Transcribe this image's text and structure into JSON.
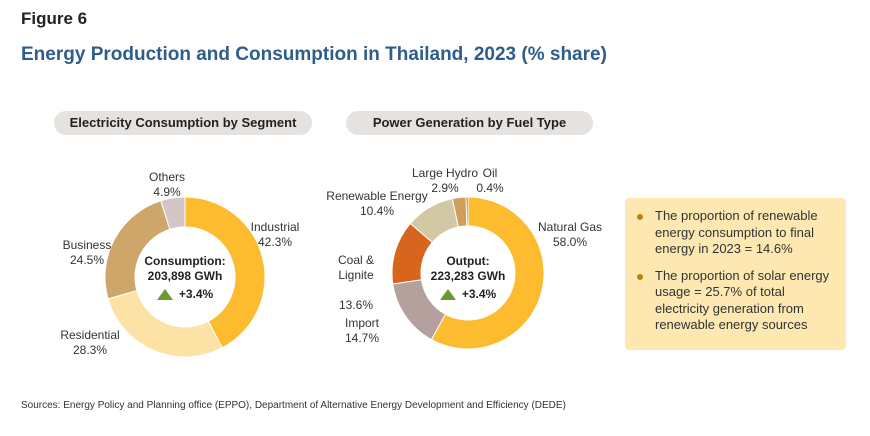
{
  "figure_label": "Figure 6",
  "title": "Energy Production and Consumption in Thailand, 2023 (% share)",
  "chart_data": [
    {
      "type": "pie",
      "style": "donut",
      "title": "Electricity Consumption by Segment",
      "center": {
        "label": "Consumption:",
        "value": "203,898 GWh",
        "growth": "+3.4%"
      },
      "slices": [
        {
          "name": "Industrial",
          "value": 42.3,
          "value_label": "42.3%",
          "color": "#fdbb30"
        },
        {
          "name": "Residential",
          "value": 28.3,
          "value_label": "28.3%",
          "color": "#fde2a6"
        },
        {
          "name": "Business",
          "value": 24.5,
          "value_label": "24.5%",
          "color": "#cfa66a"
        },
        {
          "name": "Others",
          "value": 4.9,
          "value_label": "4.9%",
          "color": "#d5c6c6"
        }
      ]
    },
    {
      "type": "pie",
      "style": "donut",
      "title": "Power Generation  by Fuel Type",
      "center": {
        "label": "Output:",
        "value": "223,283 GWh",
        "growth": "+3.4%"
      },
      "slices": [
        {
          "name": "Natural Gas",
          "value": 58.0,
          "value_label": "58.0%",
          "color": "#fdbb30"
        },
        {
          "name": "Import",
          "value": 14.7,
          "value_label": "14.7%",
          "color": "#b4a09c"
        },
        {
          "name": "Coal &\nLignite",
          "value": 13.6,
          "value_label": "13.6%",
          "color": "#d8651e"
        },
        {
          "name": "Renewable Energy",
          "value": 10.4,
          "value_label": "10.4%",
          "color": "#d3c8a6"
        },
        {
          "name": "Large Hydro",
          "value": 2.9,
          "value_label": "2.9%",
          "color": "#cf9e5a"
        },
        {
          "name": "Oil",
          "value": 0.4,
          "value_label": "0.4%",
          "color": "#7b5b3a"
        }
      ]
    }
  ],
  "notes": [
    "The proportion of renewable energy consumption to final energy in 2023 = 14.6%",
    "The proportion of solar energy usage = 25.7% of total electricity generation from renewable energy sources"
  ],
  "colors": {
    "title": "#2e5d8c",
    "pill_bg": "#e5e2df",
    "note_bg": "#fce8b0",
    "growth_arrow": "#6a9a2e"
  },
  "sources": "Sources: Energy Policy and Planning office (EPPO), Department of Alternative Energy Development and Efficiency (DEDE)"
}
